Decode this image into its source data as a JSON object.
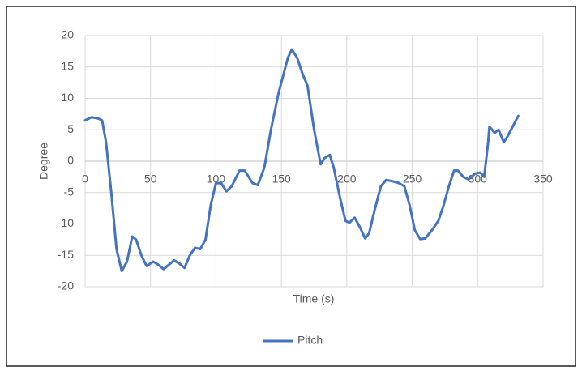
{
  "chart_data": {
    "type": "line",
    "x_label": "Time (s)",
    "y_label": "Degree",
    "xlim": [
      0,
      350
    ],
    "xticks": [
      0,
      50,
      100,
      150,
      200,
      250,
      300,
      350
    ],
    "ylim": [
      -20,
      20
    ],
    "yticks": [
      -20,
      -15,
      -10,
      -5,
      0,
      5,
      10,
      15,
      20
    ],
    "grid": true,
    "legend": "bottom",
    "x": [
      0,
      5,
      10,
      13,
      16,
      20,
      24,
      28,
      32,
      36,
      39,
      43,
      47,
      52,
      56,
      60,
      64,
      68,
      72,
      76,
      80,
      84,
      88,
      92,
      96,
      100,
      104,
      108,
      112,
      118,
      122,
      128,
      132,
      137,
      142,
      148,
      155,
      158,
      162,
      166,
      170,
      175,
      180,
      183,
      187,
      190,
      195,
      199,
      202,
      206,
      210,
      214,
      217,
      221,
      226,
      230,
      235,
      240,
      244,
      248,
      252,
      256,
      260,
      265,
      270,
      274,
      278,
      282,
      285,
      289,
      293,
      298,
      302,
      305,
      308,
      309,
      313,
      316,
      320,
      323,
      328,
      331
    ],
    "series": [
      {
        "name": "Pitch",
        "color": "#4472c4",
        "values": [
          6.5,
          7,
          6.8,
          6.5,
          3,
          -5,
          -14,
          -17.5,
          -16,
          -12,
          -12.5,
          -15,
          -16.7,
          -16,
          -16.5,
          -17.2,
          -16.5,
          -15.8,
          -16.3,
          -17,
          -15,
          -13.8,
          -14,
          -12.5,
          -7,
          -3.5,
          -3.5,
          -4.8,
          -4,
          -1.5,
          -1.5,
          -3.5,
          -3.8,
          -1,
          5,
          11,
          16.5,
          17.8,
          16.5,
          14,
          12,
          5,
          -0.5,
          0.5,
          1,
          -1,
          -6,
          -9.5,
          -9.8,
          -9,
          -10.5,
          -12.3,
          -11.5,
          -8,
          -4,
          -3,
          -3.2,
          -3.5,
          -4,
          -7,
          -11,
          -12.4,
          -12.3,
          -11,
          -9.5,
          -7,
          -4,
          -1.5,
          -1.5,
          -2.5,
          -2.9,
          -2,
          -1.8,
          -2.5,
          3,
          5.5,
          4.5,
          5,
          3,
          4,
          6,
          7.2
        ]
      }
    ]
  }
}
